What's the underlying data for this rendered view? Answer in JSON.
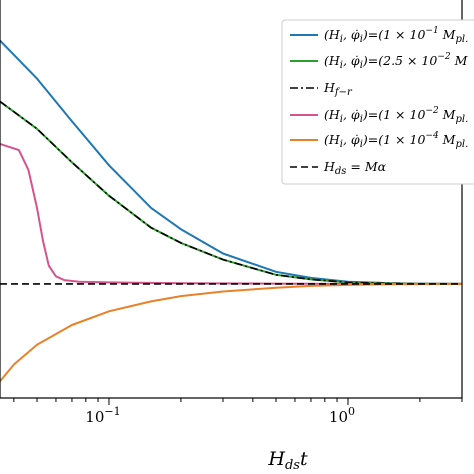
{
  "chart_data": {
    "type": "line",
    "xscale": "log",
    "xlabel": "H_ds t",
    "xlim": [
      0.035,
      3.0
    ],
    "ylim": [
      -0.75,
      1.9
    ],
    "x_ticks": [
      {
        "value": 0.1,
        "label": "10",
        "sup": "−1"
      },
      {
        "value": 1.0,
        "label": "10",
        "sup": "0"
      }
    ],
    "legend_position": "top-right",
    "series": [
      {
        "name": "(H_i, φ̇_i)=(1 × 10^-1 M_pl.",
        "color": "#1f77b4",
        "style": "solid",
        "x": [
          0.035,
          0.05,
          0.07,
          0.1,
          0.15,
          0.2,
          0.3,
          0.5,
          0.7,
          1.0,
          1.5,
          2.0,
          3.0
        ],
        "y": [
          1.6,
          1.35,
          1.07,
          0.78,
          0.5,
          0.36,
          0.2,
          0.08,
          0.04,
          0.015,
          0.005,
          0.002,
          0.0
        ]
      },
      {
        "name": "(H_i, φ̇_i)=(2.5 × 10^-2 M",
        "color": "#2ca02c",
        "style": "solid",
        "x": [
          0.035,
          0.05,
          0.07,
          0.1,
          0.15,
          0.2,
          0.3,
          0.5,
          0.7,
          1.0,
          1.5,
          2.0,
          3.0
        ],
        "y": [
          1.2,
          1.02,
          0.8,
          0.58,
          0.37,
          0.27,
          0.16,
          0.06,
          0.03,
          0.01,
          0.004,
          0.001,
          0.0
        ]
      },
      {
        "name": "H_f−r",
        "color": "#000000",
        "style": "dashdot",
        "x": [
          0.035,
          0.05,
          0.07,
          0.1,
          0.15,
          0.2,
          0.3,
          0.5,
          0.7,
          1.0,
          1.5,
          2.0,
          3.0
        ],
        "y": [
          1.2,
          1.02,
          0.8,
          0.58,
          0.37,
          0.27,
          0.16,
          0.06,
          0.03,
          0.01,
          0.004,
          0.001,
          0.0
        ]
      },
      {
        "name": "(H_i, φ̇_i)=(1 × 10^-2 M_pl.",
        "color": "#d6538b",
        "style": "solid",
        "x": [
          0.035,
          0.042,
          0.046,
          0.05,
          0.053,
          0.056,
          0.06,
          0.065,
          0.075,
          0.1,
          0.2,
          0.5,
          1.0,
          3.0
        ],
        "y": [
          0.92,
          0.88,
          0.75,
          0.5,
          0.28,
          0.12,
          0.05,
          0.025,
          0.015,
          0.01,
          0.005,
          0.002,
          0.0,
          0.0
        ]
      },
      {
        "name": "(H_i, φ̇_i)=(1 × 10^-4 M_pl.",
        "color": "#e8822a",
        "style": "solid",
        "x": [
          0.035,
          0.04,
          0.05,
          0.07,
          0.1,
          0.15,
          0.2,
          0.3,
          0.5,
          0.7,
          1.0,
          1.5,
          2.0,
          3.0
        ],
        "y": [
          -0.64,
          -0.53,
          -0.4,
          -0.27,
          -0.18,
          -0.115,
          -0.08,
          -0.05,
          -0.025,
          -0.013,
          -0.006,
          -0.002,
          -0.001,
          0.0
        ]
      },
      {
        "name": "H_ds = Mα",
        "color": "#000000",
        "style": "dashed",
        "x": [
          0.035,
          3.0
        ],
        "y": [
          0.0,
          0.0
        ]
      }
    ]
  }
}
